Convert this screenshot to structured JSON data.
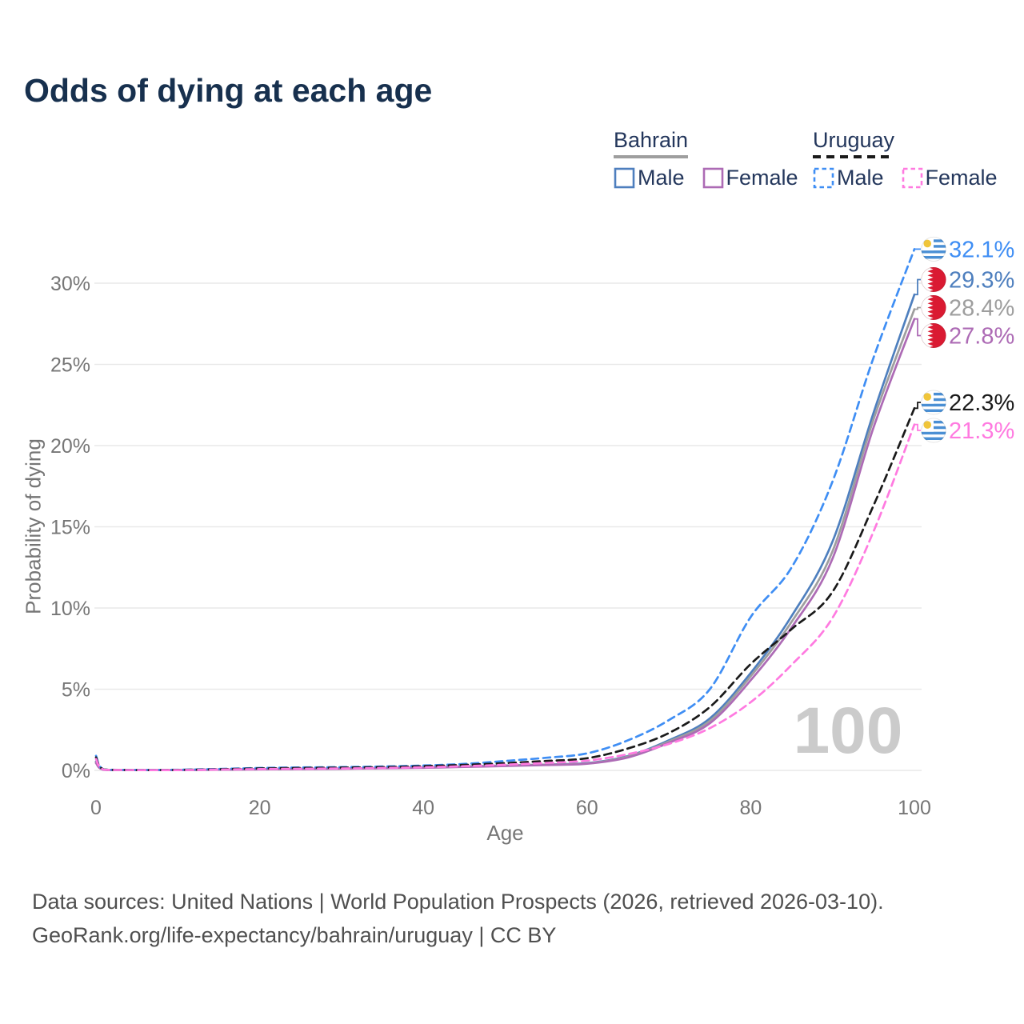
{
  "title": "Odds of dying at each age",
  "legend": {
    "groups": [
      {
        "id": "bahrain",
        "label": "Bahrain",
        "line_style": "solid",
        "line_color": "#9e9e9e",
        "items": [
          {
            "id": "bahrain_male",
            "label": "Male"
          },
          {
            "id": "bahrain_female",
            "label": "Female"
          }
        ]
      },
      {
        "id": "uruguay",
        "label": "Uruguay",
        "line_style": "dashed",
        "line_color": "#1a1a1a",
        "items": [
          {
            "id": "uruguay_male",
            "label": "Male"
          },
          {
            "id": "uruguay_female",
            "label": "Female"
          }
        ]
      }
    ]
  },
  "chart_data": {
    "type": "line",
    "title": "Odds of dying at each age",
    "xlabel": "Age",
    "ylabel": "Probability of dying",
    "xlim": [
      0,
      100
    ],
    "ylim": [
      0,
      32.5
    ],
    "grid": "horizontal-only",
    "gridline_color": "#e9e9e9",
    "axis_text_color": "#767676",
    "watermark_color": "#cbcbcb",
    "x_ticks": [
      "0",
      "20",
      "40",
      "60",
      "80",
      "100"
    ],
    "x_tick_values": [
      0,
      20,
      40,
      60,
      80,
      100
    ],
    "y_ticks": [
      "0%",
      "5%",
      "10%",
      "15%",
      "20%",
      "25%",
      "30%"
    ],
    "y_tick_values": [
      0,
      5,
      10,
      15,
      20,
      25,
      30
    ],
    "age_watermark": "100",
    "ages": [
      0,
      1,
      5,
      10,
      15,
      20,
      25,
      30,
      35,
      40,
      45,
      50,
      55,
      60,
      65,
      70,
      75,
      80,
      85,
      90,
      95,
      100
    ],
    "series": [
      {
        "id": "bahrain_male",
        "name": "Bahrain Male",
        "country": "Bahrain",
        "sex": "Male",
        "color": "#4e7fbe",
        "dashed": false,
        "flag": "bahrain",
        "end_label": "29.3%",
        "values": [
          0.55,
          0.04,
          0.02,
          0.03,
          0.05,
          0.08,
          0.1,
          0.12,
          0.15,
          0.19,
          0.24,
          0.3,
          0.36,
          0.45,
          0.88,
          1.85,
          3.2,
          6.0,
          9.5,
          14.1,
          22.0,
          29.3
        ]
      },
      {
        "id": "bahrain_total",
        "name": "Bahrain Both sexes",
        "country": "Bahrain",
        "sex": "Both",
        "color": "#9e9e9e",
        "dashed": false,
        "flag": "bahrain",
        "end_label": "28.4%",
        "values": [
          0.5,
          0.04,
          0.02,
          0.03,
          0.05,
          0.07,
          0.09,
          0.11,
          0.14,
          0.18,
          0.23,
          0.29,
          0.35,
          0.43,
          0.85,
          1.78,
          3.05,
          5.8,
          9.15,
          13.5,
          21.6,
          28.4
        ]
      },
      {
        "id": "bahrain_female",
        "name": "Bahrain Female",
        "country": "Bahrain",
        "sex": "Female",
        "color": "#ad6bb5",
        "dashed": false,
        "flag": "bahrain",
        "end_label": "27.8%",
        "values": [
          0.45,
          0.03,
          0.02,
          0.02,
          0.04,
          0.06,
          0.08,
          0.1,
          0.13,
          0.16,
          0.21,
          0.27,
          0.33,
          0.41,
          0.8,
          1.7,
          2.9,
          5.55,
          8.8,
          13.05,
          21.1,
          27.8
        ]
      },
      {
        "id": "uruguay_male",
        "name": "Uruguay Male",
        "country": "Uruguay",
        "sex": "Male",
        "color": "#3f8ef4",
        "dashed": true,
        "flag": "uruguay",
        "end_label": "32.1%",
        "values": [
          0.9,
          0.05,
          0.03,
          0.04,
          0.09,
          0.15,
          0.18,
          0.2,
          0.24,
          0.3,
          0.4,
          0.58,
          0.78,
          1.05,
          1.85,
          3.1,
          5.0,
          9.45,
          12.5,
          17.8,
          25.4,
          32.1
        ]
      },
      {
        "id": "uruguay_total",
        "name": "Uruguay Both sexes",
        "country": "Uruguay",
        "sex": "Both",
        "color": "#1a1a1a",
        "dashed": true,
        "flag": "uruguay",
        "end_label": "22.3%",
        "values": [
          0.8,
          0.05,
          0.02,
          0.03,
          0.07,
          0.12,
          0.15,
          0.17,
          0.2,
          0.26,
          0.34,
          0.45,
          0.58,
          0.75,
          1.35,
          2.3,
          3.9,
          6.55,
          8.7,
          11.0,
          16.3,
          22.3
        ]
      },
      {
        "id": "uruguay_female",
        "name": "Uruguay Female",
        "country": "Uruguay",
        "sex": "Female",
        "color": "#ff7ae0",
        "dashed": true,
        "flag": "uruguay",
        "end_label": "21.3%",
        "values": [
          0.7,
          0.04,
          0.02,
          0.02,
          0.05,
          0.08,
          0.1,
          0.12,
          0.15,
          0.19,
          0.26,
          0.35,
          0.46,
          0.6,
          1.0,
          1.63,
          2.6,
          4.2,
          6.5,
          9.4,
          14.7,
          21.3
        ]
      }
    ]
  },
  "footer": {
    "line1": "Data sources: United Nations | World Population Prospects (2026, retrieved 2026-03-10).",
    "line2": "GeoRank.org/life-expectancy/bahrain/uruguay | CC BY"
  }
}
